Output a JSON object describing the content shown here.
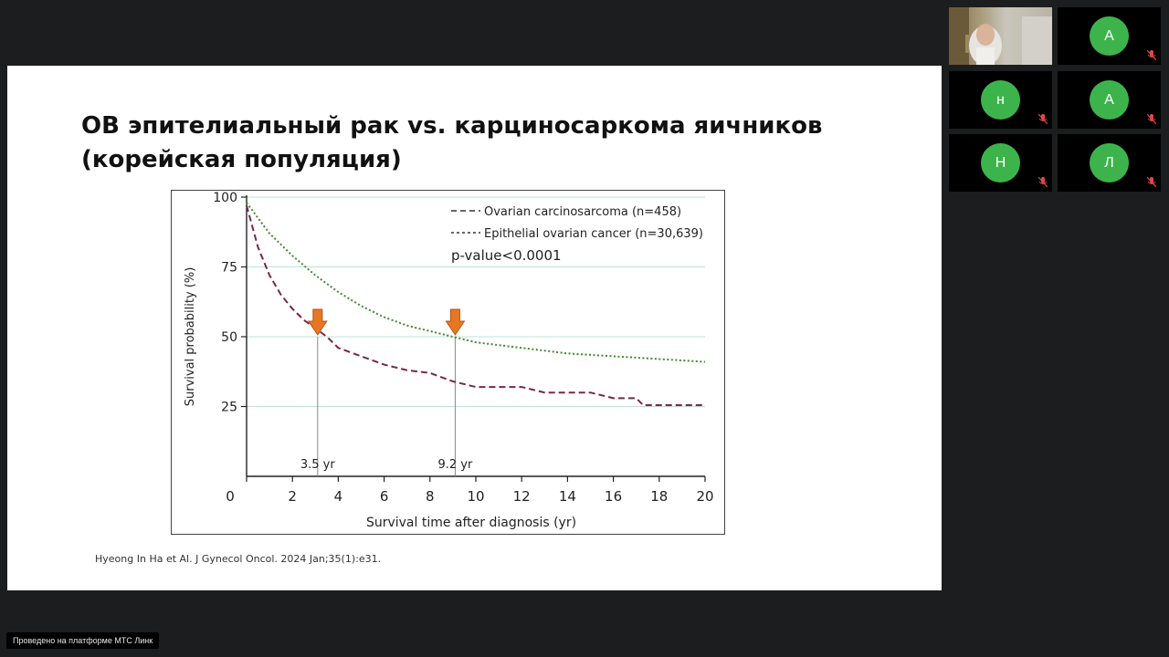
{
  "slide": {
    "title_line1": "ОВ эпителиальный рак vs. карциносаркома яичников",
    "title_line2": "(корейская популяция)",
    "citation": "Hyeong In Ha et Al. J Gynecol Oncol. 2024 Jan;35(1):e31."
  },
  "chart_data": {
    "type": "line",
    "xlabel": "Survival time after diagnosis (yr)",
    "ylabel": "Survival probability (%)",
    "xlim": [
      0,
      20
    ],
    "ylim": [
      0,
      100
    ],
    "xticks": [
      0,
      2,
      4,
      6,
      8,
      10,
      12,
      14,
      16,
      18,
      20
    ],
    "yticks": [
      25,
      50,
      75,
      100
    ],
    "grid": "horizontal",
    "legend_position": "top-right",
    "series": [
      {
        "name": "Ovarian carcinosarcoma (n=458)",
        "color": "#7a2840",
        "style": "dashed",
        "x": [
          0,
          0.5,
          1,
          1.5,
          2,
          2.5,
          3,
          3.5,
          4,
          5,
          6,
          7,
          8,
          9,
          10,
          11,
          12,
          13,
          14,
          15,
          16,
          17,
          17.3,
          18,
          19,
          20
        ],
        "y": [
          97,
          82,
          72,
          65,
          60,
          56,
          53,
          50,
          46,
          43,
          40,
          38,
          37,
          34,
          32,
          32,
          32,
          30,
          30,
          30,
          28,
          28,
          25.5,
          25.5,
          25.5,
          25.5
        ]
      },
      {
        "name": "Epithelial ovarian cancer (n=30,639)",
        "color": "#3f8a2e",
        "style": "dotted",
        "x": [
          0,
          1,
          2,
          3,
          4,
          5,
          6,
          7,
          8,
          9,
          10,
          11,
          12,
          13,
          14,
          15,
          16,
          17,
          18,
          19,
          20
        ],
        "y": [
          98,
          87,
          79,
          72,
          66,
          61,
          57,
          54,
          52,
          50,
          48,
          47,
          46,
          45,
          44,
          43.5,
          43,
          42.5,
          42,
          41.5,
          41
        ]
      }
    ],
    "annotations": [
      {
        "text": "p-value<0.0001"
      },
      {
        "text": "3.5 yr",
        "x": 3.1,
        "y": 50
      },
      {
        "text": "9.2 yr",
        "x": 9.1,
        "y": 50
      }
    ],
    "marker_color": "#e87722"
  },
  "participants": [
    {
      "initial": "",
      "type": "video",
      "muted": false
    },
    {
      "initial": "А",
      "color": "#3cb44b",
      "muted": true
    },
    {
      "initial": "н",
      "color": "#3cb44b",
      "muted": true
    },
    {
      "initial": "А",
      "color": "#3cb44b",
      "muted": true
    },
    {
      "initial": "Н",
      "color": "#3cb44b",
      "muted": true
    },
    {
      "initial": "Л",
      "color": "#3cb44b",
      "muted": true
    }
  ],
  "footer": {
    "platform": "Проведено на платформе МТС Линк"
  }
}
